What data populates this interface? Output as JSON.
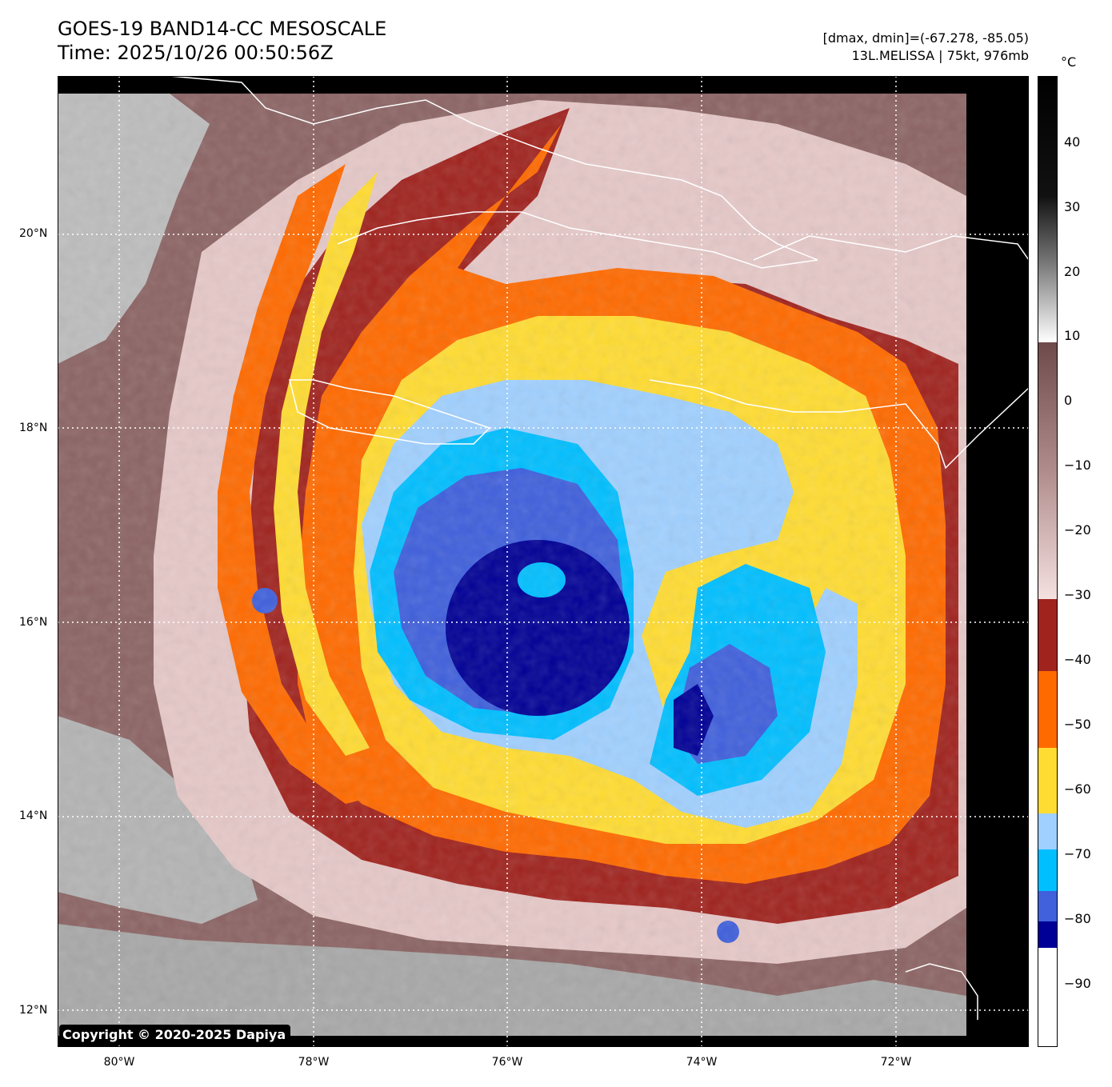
{
  "header": {
    "title": "GOES-19 BAND14-CC MESOSCALE",
    "time": "Time: 2025/10/26 00:50:56Z",
    "range": "[dmax, dmin]=(-67.278, -85.05)",
    "storm": "13L.MELISSA | 75kt, 976mb"
  },
  "map": {
    "lat_labels": [
      "20°N",
      "18°N",
      "16°N",
      "14°N",
      "12°N"
    ],
    "lon_labels": [
      "80°W",
      "78°W",
      "76°W",
      "74°W",
      "72°W"
    ],
    "copyright": "Copyright © 2020-2025 Dapiya"
  },
  "colorbar": {
    "unit": "°C",
    "labels": [
      "40",
      "30",
      "20",
      "10",
      "0",
      "−10",
      "−20",
      "−30",
      "−40",
      "−50",
      "−60",
      "−70",
      "−80",
      "−90"
    ]
  },
  "colors": {
    "land_gray": "#bdbdbd",
    "warm_cloud": "#8c6464",
    "cold_pink": "#e6c8c8",
    "maroon": "#a0231e",
    "orange": "#ff6a00",
    "yellow": "#ffdc32",
    "light_blue": "#a0d0ff",
    "cyan": "#00bfff",
    "royal_blue": "#4060dc",
    "navy": "#000096",
    "coast": "#ffffff"
  }
}
